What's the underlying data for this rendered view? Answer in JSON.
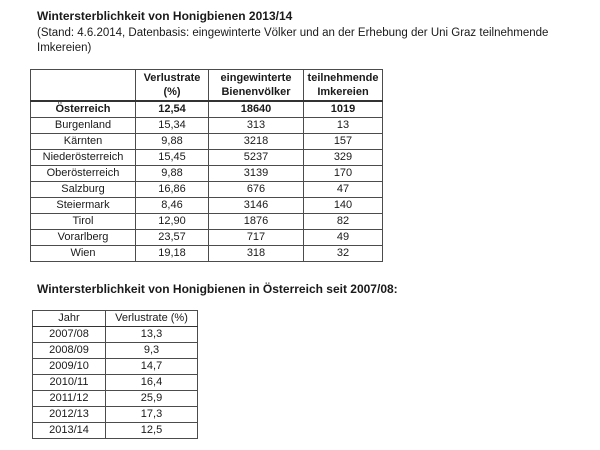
{
  "doc": {
    "title": "Wintersterblichkeit von Honigbienen 2013/14",
    "subtitle": "(Stand: 4.6.2014, Datenbasis: eingewinterte Völker und an der Erhebung der Uni Graz teilnehmende Imkereien)",
    "section2_title": "Wintersterblichkeit von Honigbienen in Österreich seit 2007/08:"
  },
  "colors": {
    "background": "#ffffff",
    "text": "#1a1a1a",
    "border": "#4c4c4c",
    "border_strong": "#333333"
  },
  "mortality_table": {
    "headers": {
      "region": "",
      "loss_rate": "Verlustrate (%)",
      "colonies": "eingewinterte Bienenvölker",
      "beekeepers": "teilnehmende Imkereien"
    },
    "rows": [
      {
        "region": "Österreich",
        "loss_rate": "12,54",
        "colonies": "18640",
        "beekeepers": "1019"
      },
      {
        "region": "Burgenland",
        "loss_rate": "15,34",
        "colonies": "313",
        "beekeepers": "13"
      },
      {
        "region": "Kärnten",
        "loss_rate": "9,88",
        "colonies": "3218",
        "beekeepers": "157"
      },
      {
        "region": "Niederösterreich",
        "loss_rate": "15,45",
        "colonies": "5237",
        "beekeepers": "329"
      },
      {
        "region": "Oberösterreich",
        "loss_rate": "9,88",
        "colonies": "3139",
        "beekeepers": "170"
      },
      {
        "region": "Salzburg",
        "loss_rate": "16,86",
        "colonies": "676",
        "beekeepers": "47"
      },
      {
        "region": "Steiermark",
        "loss_rate": "8,46",
        "colonies": "3146",
        "beekeepers": "140"
      },
      {
        "region": "Tirol",
        "loss_rate": "12,90",
        "colonies": "1876",
        "beekeepers": "82"
      },
      {
        "region": "Vorarlberg",
        "loss_rate": "23,57",
        "colonies": "717",
        "beekeepers": "49"
      },
      {
        "region": "Wien",
        "loss_rate": "19,18",
        "colonies": "318",
        "beekeepers": "32"
      }
    ]
  },
  "history_table": {
    "headers": {
      "year": "Jahr",
      "loss_rate": "Verlustrate (%)"
    },
    "rows": [
      {
        "year": "2007/08",
        "loss_rate": "13,3"
      },
      {
        "year": "2008/09",
        "loss_rate": "9,3"
      },
      {
        "year": "2009/10",
        "loss_rate": "14,7"
      },
      {
        "year": "2010/11",
        "loss_rate": "16,4"
      },
      {
        "year": "2011/12",
        "loss_rate": "25,9"
      },
      {
        "year": "2012/13",
        "loss_rate": "17,3"
      },
      {
        "year": "2013/14",
        "loss_rate": "12,5"
      }
    ]
  }
}
